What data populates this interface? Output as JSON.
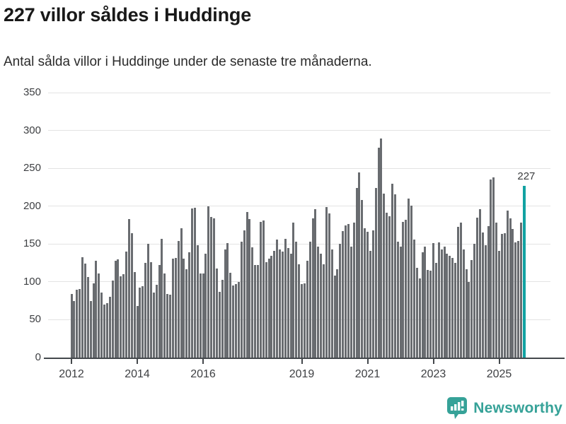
{
  "header": {
    "title": "227 villor såldes i Huddinge",
    "subtitle": "Antal sålda villor i Huddinge under de senaste tre månaderna."
  },
  "chart_data": {
    "type": "bar",
    "title": "227 villor såldes i Huddinge",
    "subtitle": "Antal sålda villor i Huddinge under de senaste tre månaderna.",
    "frequency": "monthly",
    "series_start": "2012-01",
    "series_end": "2025-10",
    "ylim": [
      0,
      350
    ],
    "y_ticks": [
      0,
      50,
      100,
      150,
      200,
      250,
      300,
      350
    ],
    "x_ticks": [
      {
        "label": "2012",
        "month_index": 0
      },
      {
        "label": "2014",
        "month_index": 24
      },
      {
        "label": "2016",
        "month_index": 48
      },
      {
        "label": "2019",
        "month_index": 84
      },
      {
        "label": "2021",
        "month_index": 108
      },
      {
        "label": "2023",
        "month_index": 132
      },
      {
        "label": "2025",
        "month_index": 156
      }
    ],
    "values": [
      84,
      75,
      90,
      91,
      133,
      124,
      106,
      75,
      98,
      128,
      111,
      86,
      70,
      72,
      80,
      102,
      128,
      130,
      107,
      110,
      140,
      183,
      164,
      113,
      68,
      92,
      94,
      125,
      150,
      126,
      86,
      96,
      122,
      157,
      111,
      84,
      83,
      131,
      132,
      154,
      171,
      131,
      117,
      139,
      197,
      198,
      148,
      111,
      111,
      137,
      200,
      186,
      184,
      118,
      87,
      103,
      143,
      151,
      112,
      95,
      97,
      100,
      153,
      168,
      192,
      183,
      146,
      122,
      122,
      179,
      181,
      126,
      131,
      134,
      141,
      156,
      143,
      140,
      157,
      145,
      137,
      178,
      153,
      123,
      97,
      98,
      128,
      153,
      184,
      196,
      147,
      137,
      123,
      199,
      190,
      143,
      108,
      117,
      150,
      167,
      175,
      176,
      147,
      178,
      224,
      245,
      208,
      171,
      166,
      141,
      168,
      224,
      277,
      289,
      217,
      191,
      187,
      230,
      216,
      153,
      147,
      179,
      182,
      210,
      201,
      156,
      119,
      105,
      139,
      147,
      116,
      115,
      151,
      125,
      152,
      143,
      147,
      137,
      134,
      132,
      125,
      173,
      178,
      143,
      117,
      100,
      129,
      150,
      185,
      196,
      165,
      148,
      174,
      235,
      238,
      178,
      141,
      163,
      164,
      194,
      184,
      170,
      152,
      154,
      178,
      227
    ],
    "highlight": {
      "index": 165,
      "value": 227,
      "label": "227",
      "color": "#12a2a2"
    },
    "colors": {
      "bar": "#696c70",
      "grid": "#e3e3e3",
      "axis": "#44484c",
      "axis_text": "#3d3f42"
    },
    "grid": "horizontal",
    "legend": "none"
  },
  "footer": {
    "brand": "Newsworthy",
    "brand_color": "#36a298",
    "logo_icon": "bar-chart-speech-bubble"
  }
}
